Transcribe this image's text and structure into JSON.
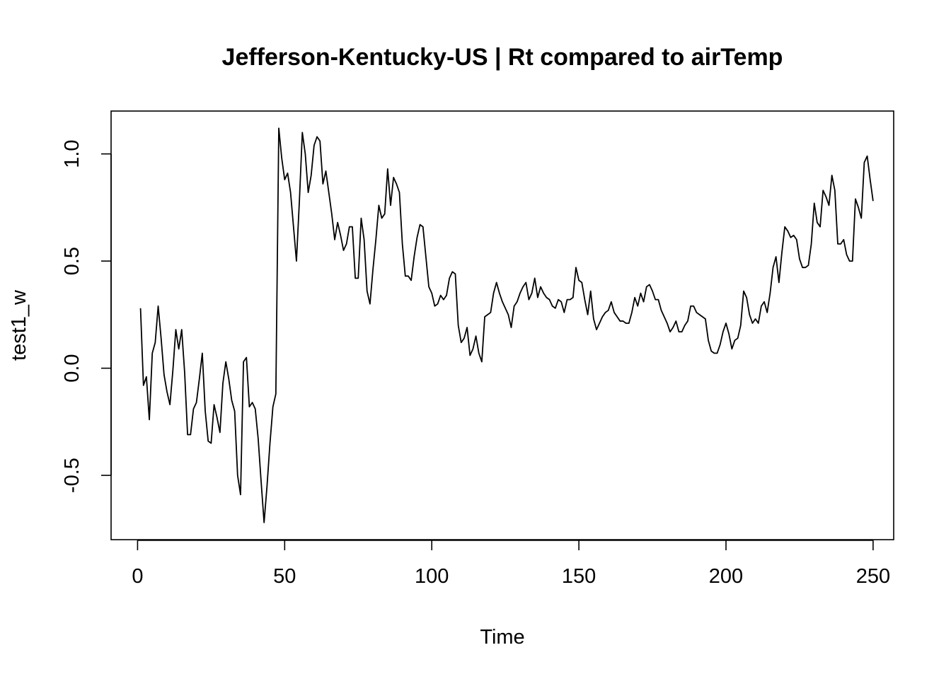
{
  "chart_data": {
    "type": "line",
    "title": "Jefferson-Kentucky-US | Rt compared to airTemp",
    "xlabel": "Time",
    "ylabel": "test1_w",
    "xlim": [
      -9,
      257
    ],
    "ylim": [
      -0.8,
      1.2
    ],
    "x_ticks": [
      0,
      50,
      100,
      150,
      200,
      250
    ],
    "y_ticks": [
      -0.5,
      0.0,
      0.5,
      1.0
    ],
    "x_tick_labels": [
      "0",
      "50",
      "100",
      "150",
      "200",
      "250"
    ],
    "y_tick_labels": [
      "-0.5",
      "0.0",
      "0.5",
      "1.0"
    ],
    "grid": false,
    "legend": "none",
    "series": [
      {
        "x_start": 1,
        "values": [
          0.28,
          -0.08,
          -0.04,
          -0.24,
          0.07,
          0.12,
          0.29,
          0.14,
          -0.03,
          -0.11,
          -0.17,
          -0.01,
          0.18,
          0.09,
          0.18,
          -0.02,
          -0.31,
          -0.31,
          -0.19,
          -0.16,
          -0.05,
          0.07,
          -0.2,
          -0.34,
          -0.35,
          -0.17,
          -0.23,
          -0.3,
          -0.07,
          0.03,
          -0.05,
          -0.15,
          -0.2,
          -0.5,
          -0.59,
          0.03,
          0.05,
          -0.18,
          -0.16,
          -0.19,
          -0.33,
          -0.53,
          -0.72,
          -0.55,
          -0.35,
          -0.18,
          -0.12,
          1.12,
          0.98,
          0.88,
          0.91,
          0.82,
          0.66,
          0.5,
          0.78,
          1.1,
          1.0,
          0.82,
          0.9,
          1.04,
          1.08,
          1.06,
          0.86,
          0.92,
          0.82,
          0.72,
          0.6,
          0.68,
          0.62,
          0.55,
          0.58,
          0.66,
          0.66,
          0.42,
          0.42,
          0.7,
          0.6,
          0.36,
          0.3,
          0.46,
          0.6,
          0.76,
          0.7,
          0.72,
          0.93,
          0.76,
          0.89,
          0.86,
          0.82,
          0.58,
          0.43,
          0.43,
          0.41,
          0.52,
          0.61,
          0.67,
          0.66,
          0.52,
          0.38,
          0.35,
          0.29,
          0.3,
          0.34,
          0.32,
          0.34,
          0.42,
          0.45,
          0.44,
          0.2,
          0.12,
          0.14,
          0.19,
          0.06,
          0.09,
          0.15,
          0.07,
          0.03,
          0.24,
          0.25,
          0.26,
          0.35,
          0.4,
          0.35,
          0.31,
          0.28,
          0.25,
          0.19,
          0.29,
          0.31,
          0.35,
          0.38,
          0.4,
          0.32,
          0.35,
          0.42,
          0.33,
          0.38,
          0.35,
          0.33,
          0.32,
          0.29,
          0.28,
          0.32,
          0.31,
          0.26,
          0.32,
          0.32,
          0.33,
          0.47,
          0.41,
          0.4,
          0.32,
          0.25,
          0.36,
          0.23,
          0.18,
          0.21,
          0.24,
          0.26,
          0.27,
          0.31,
          0.26,
          0.24,
          0.22,
          0.22,
          0.21,
          0.21,
          0.26,
          0.33,
          0.29,
          0.35,
          0.31,
          0.38,
          0.39,
          0.36,
          0.32,
          0.32,
          0.27,
          0.24,
          0.21,
          0.17,
          0.19,
          0.22,
          0.17,
          0.17,
          0.2,
          0.22,
          0.29,
          0.29,
          0.26,
          0.25,
          0.24,
          0.23,
          0.13,
          0.08,
          0.07,
          0.07,
          0.11,
          0.17,
          0.21,
          0.16,
          0.09,
          0.13,
          0.14,
          0.2,
          0.36,
          0.33,
          0.25,
          0.21,
          0.23,
          0.21,
          0.29,
          0.31,
          0.26,
          0.35,
          0.47,
          0.52,
          0.4,
          0.54,
          0.66,
          0.64,
          0.61,
          0.62,
          0.6,
          0.51,
          0.47,
          0.47,
          0.48,
          0.58,
          0.77,
          0.68,
          0.66,
          0.83,
          0.8,
          0.76,
          0.9,
          0.83,
          0.58,
          0.58,
          0.6,
          0.53,
          0.5,
          0.5,
          0.79,
          0.75,
          0.7,
          0.96,
          0.99,
          0.88,
          0.78
        ]
      }
    ]
  }
}
